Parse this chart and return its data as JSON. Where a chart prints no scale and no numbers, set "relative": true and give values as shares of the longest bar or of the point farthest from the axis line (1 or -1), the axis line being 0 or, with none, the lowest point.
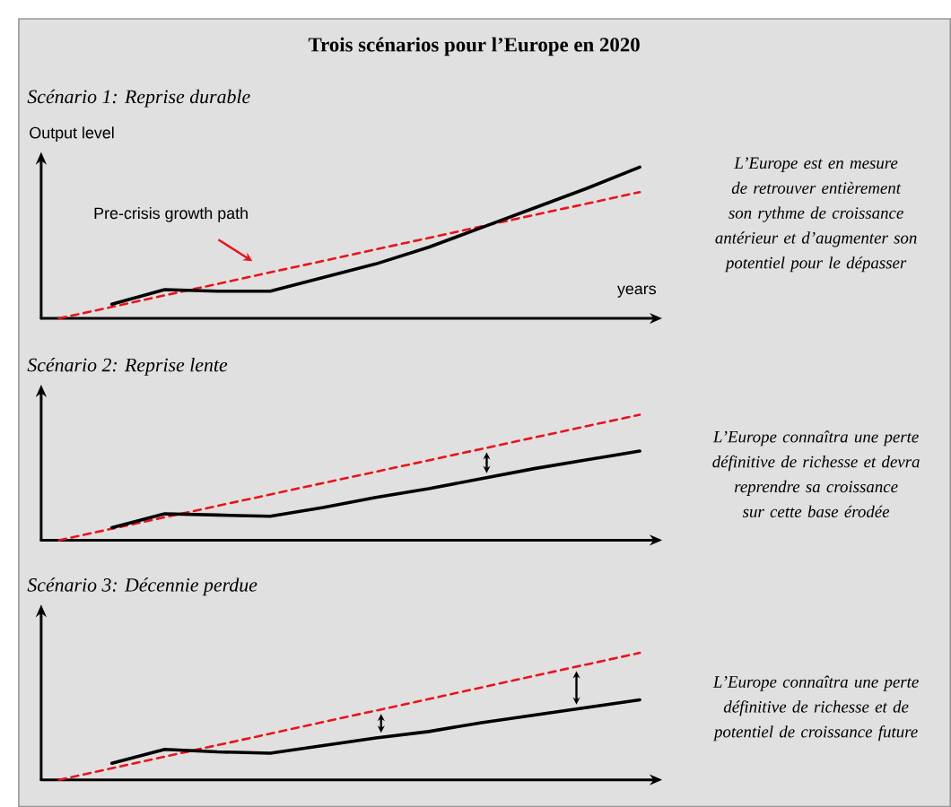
{
  "chart_data": [
    {
      "type": "line",
      "title": "Trois scénarios pour l’Europe en 2020",
      "subtitle": "Scénario 1: Reprise durable",
      "xlabel": "years",
      "ylabel": "Output level",
      "relative": true,
      "categories": [
        null,
        null,
        null,
        null,
        null,
        null,
        null,
        null,
        null,
        null,
        null,
        null
      ],
      "series": [
        {
          "name": "Pre-crisis growth path",
          "color": "#e8141b",
          "line_style": "dashed",
          "values": [
            0,
            0.076,
            0.152,
            0.228,
            0.304,
            0.38,
            0.456,
            0.532,
            0.608,
            0.684,
            0.759,
            0.835
          ]
        },
        {
          "color": "#000000",
          "line_style": "solid",
          "values": [
            null,
            0.094,
            0.19,
            0.18,
            0.18,
            0.27,
            0.36,
            0.47,
            0.6,
            0.73,
            0.86,
            1
          ]
        }
      ],
      "annotations": [
        "L’Europe est en mesure de retrouver entièrement son rythme de croissance antérieur et d’augmenter son potentiel pour le dépasser"
      ]
    },
    {
      "type": "line",
      "subtitle": "Scénario 2: Reprise lente",
      "relative": true,
      "categories": [
        null,
        null,
        null,
        null,
        null,
        null,
        null,
        null,
        null,
        null,
        null,
        null
      ],
      "series": [
        {
          "color": "#e8141b",
          "line_style": "dashed",
          "values": [
            0,
            0.091,
            0.182,
            0.273,
            0.364,
            0.455,
            0.545,
            0.636,
            0.727,
            0.818,
            0.909,
            1
          ]
        },
        {
          "color": "#000000",
          "line_style": "solid",
          "values": [
            null,
            0.1,
            0.21,
            0.2,
            0.19,
            0.26,
            0.34,
            0.41,
            0.49,
            0.57,
            0.64,
            0.71
          ]
        }
      ],
      "annotations": [
        "L’Europe connaîtra une perte définitive de richesse et devra reprendre sa croissance sur cette base érodée"
      ]
    },
    {
      "type": "line",
      "subtitle": "Scénario 3: Décennie perdue",
      "relative": true,
      "categories": [
        null,
        null,
        null,
        null,
        null,
        null,
        null,
        null,
        null,
        null,
        null,
        null
      ],
      "series": [
        {
          "color": "#e8141b",
          "line_style": "dashed",
          "values": [
            0,
            0.091,
            0.182,
            0.273,
            0.364,
            0.455,
            0.545,
            0.636,
            0.727,
            0.818,
            0.909,
            1
          ]
        },
        {
          "color": "#000000",
          "line_style": "solid",
          "values": [
            null,
            0.13,
            0.24,
            0.22,
            0.21,
            0.27,
            0.33,
            0.38,
            0.45,
            0.51,
            0.57,
            0.63
          ]
        }
      ],
      "annotations": [
        "L’Europe connaîtra une perte définitive de richesse et de potentiel de croissance future"
      ]
    }
  ]
}
